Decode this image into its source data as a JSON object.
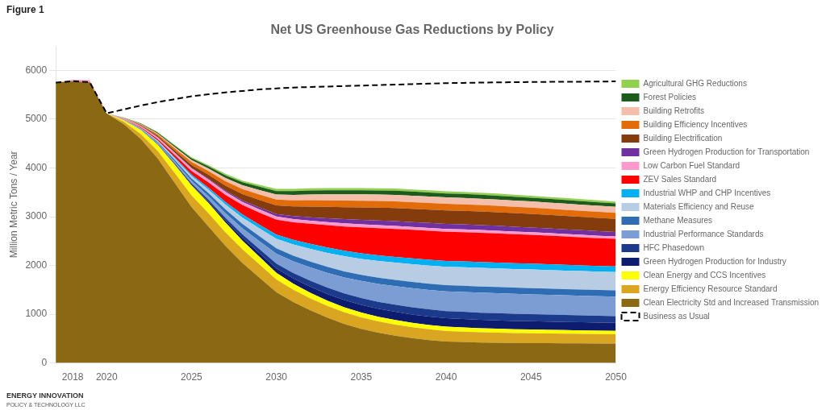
{
  "chart_data": {
    "type": "area",
    "title": "Net US Greenhouse Gas Reductions by Policy",
    "y_label": "Million Metric Tons / Year",
    "annotations": [
      "Figure 1",
      "ENERGY INNOVATION",
      "POLICY & TECHNOLOGY LLC"
    ],
    "x": [
      2017,
      2018,
      2019,
      2020,
      2021,
      2022,
      2023,
      2024,
      2025,
      2026,
      2027,
      2028,
      2029,
      2030,
      2031,
      2032,
      2033,
      2034,
      2035,
      2036,
      2037,
      2038,
      2039,
      2040,
      2041,
      2042,
      2043,
      2044,
      2045,
      2046,
      2047,
      2048,
      2049,
      2050
    ],
    "stacked": true,
    "series": [
      {
        "name": "Clean Electricity Std and Increased Transmission",
        "color": "#8B6914",
        "values": [
          5750,
          5780,
          5760,
          5120,
          4900,
          4600,
          4200,
          3700,
          3200,
          2800,
          2400,
          2050,
          1750,
          1450,
          1250,
          1080,
          930,
          800,
          700,
          620,
          560,
          510,
          470,
          440,
          430,
          420,
          415,
          410,
          408,
          406,
          404,
          402,
          400,
          400
        ]
      },
      {
        "name": "Energy Efficiency Resource Standard",
        "color": "#DAA520",
        "values": [
          0,
          0,
          0,
          0,
          50,
          100,
          150,
          200,
          240,
          270,
          280,
          280,
          270,
          260,
          250,
          245,
          240,
          238,
          235,
          232,
          228,
          224,
          220,
          216,
          212,
          208,
          205,
          202,
          200,
          198,
          196,
          194,
          192,
          190
        ]
      },
      {
        "name": "Clean Energy and CCS Incentives",
        "color": "#FFFF00",
        "values": [
          0,
          0,
          0,
          0,
          30,
          80,
          130,
          170,
          200,
          210,
          200,
          180,
          160,
          140,
          125,
          115,
          108,
          102,
          98,
          95,
          93,
          91,
          90,
          88,
          86,
          84,
          82,
          80,
          78,
          76,
          74,
          72,
          70,
          68
        ]
      },
      {
        "name": "Green Hydrogen Production for Industry",
        "color": "#0D1C6E",
        "values": [
          0,
          0,
          0,
          0,
          0,
          2,
          5,
          10,
          18,
          28,
          40,
          55,
          72,
          90,
          108,
          124,
          138,
          150,
          158,
          164,
          168,
          170,
          172,
          173,
          173,
          172,
          171,
          170,
          169,
          168,
          167,
          166,
          165,
          164
        ]
      },
      {
        "name": "HFC Phasedown",
        "color": "#1C3A8C",
        "values": [
          0,
          0,
          0,
          0,
          2,
          5,
          10,
          18,
          28,
          40,
          55,
          70,
          85,
          100,
          112,
          122,
          130,
          136,
          140,
          143,
          145,
          146,
          147,
          148,
          148,
          148,
          147,
          146,
          145,
          144,
          143,
          142,
          141,
          140
        ]
      },
      {
        "name": "Industrial Performance Standards",
        "color": "#7B9DD4",
        "values": [
          0,
          0,
          0,
          0,
          5,
          12,
          22,
          35,
          50,
          70,
          95,
          125,
          160,
          200,
          238,
          272,
          302,
          328,
          350,
          368,
          382,
          393,
          400,
          405,
          408,
          410,
          410,
          410,
          408,
          406,
          404,
          402,
          400,
          398
        ]
      },
      {
        "name": "Methane Measures",
        "color": "#2E6DB4",
        "values": [
          0,
          0,
          0,
          0,
          5,
          12,
          22,
          35,
          50,
          65,
          80,
          92,
          102,
          110,
          116,
          120,
          123,
          125,
          126,
          127,
          127,
          127,
          127,
          127,
          127,
          127,
          127,
          127,
          127,
          127,
          127,
          127,
          127,
          127
        ]
      },
      {
        "name": "Materials Efficiency and Reuse",
        "color": "#B8CCE4",
        "values": [
          0,
          0,
          0,
          0,
          2,
          8,
          18,
          32,
          50,
          72,
          98,
          128,
          162,
          198,
          232,
          262,
          288,
          310,
          328,
          343,
          355,
          364,
          371,
          376,
          379,
          381,
          382,
          382,
          382,
          381,
          380,
          379,
          378,
          377
        ]
      },
      {
        "name": "Industrial WHP and CHP Incentives",
        "color": "#00B0F0",
        "values": [
          0,
          0,
          0,
          0,
          2,
          5,
          10,
          18,
          28,
          40,
          52,
          64,
          76,
          86,
          95,
          102,
          108,
          112,
          115,
          117,
          118,
          119,
          120,
          120,
          120,
          120,
          120,
          120,
          120,
          120,
          119,
          118,
          117,
          116
        ]
      },
      {
        "name": "ZEV Sales Standard",
        "color": "#FF0000",
        "values": [
          0,
          0,
          0,
          0,
          5,
          15,
          30,
          50,
          75,
          108,
          148,
          195,
          248,
          305,
          360,
          412,
          458,
          498,
          530,
          556,
          574,
          586,
          594,
          598,
          600,
          600,
          598,
          594,
          590,
          585,
          580,
          575,
          570,
          565
        ]
      },
      {
        "name": "Low Carbon Fuel Standard",
        "color": "#FF99CC",
        "values": [
          0,
          30,
          40,
          0,
          15,
          25,
          35,
          44,
          52,
          58,
          62,
          64,
          65,
          65,
          65,
          65,
          65,
          65,
          64,
          63,
          62,
          61,
          60,
          59,
          58,
          57,
          56,
          55,
          54,
          53,
          52,
          51,
          50,
          49
        ]
      },
      {
        "name": "Green Hydrogen Production for Transportation",
        "color": "#7030A0",
        "values": [
          0,
          0,
          0,
          0,
          0,
          0,
          2,
          5,
          10,
          16,
          23,
          32,
          42,
          52,
          62,
          71,
          79,
          85,
          90,
          94,
          97,
          99,
          100,
          101,
          101,
          101,
          100,
          99,
          98,
          97,
          96,
          95,
          94,
          93
        ]
      },
      {
        "name": "Building Electrification",
        "color": "#843C0C",
        "values": [
          0,
          0,
          0,
          0,
          5,
          15,
          28,
          44,
          62,
          82,
          104,
          127,
          151,
          175,
          197,
          216,
          232,
          245,
          255,
          263,
          269,
          273,
          276,
          278,
          279,
          280,
          280,
          279,
          278,
          276,
          274,
          272,
          270,
          268
        ]
      },
      {
        "name": "Building Efficiency Incentives",
        "color": "#E26B0A",
        "values": [
          0,
          0,
          0,
          0,
          5,
          15,
          28,
          44,
          60,
          76,
          90,
          103,
          113,
          121,
          127,
          132,
          135,
          137,
          138,
          138,
          137,
          136,
          135,
          134,
          133,
          132,
          131,
          130,
          129,
          128,
          127,
          126,
          125,
          124
        ]
      },
      {
        "name": "Building Retrofits",
        "color": "#F4BEAA",
        "values": [
          0,
          0,
          0,
          0,
          3,
          8,
          16,
          26,
          38,
          51,
          65,
          78,
          91,
          102,
          111,
          118,
          124,
          128,
          131,
          132,
          133,
          133,
          133,
          132,
          131,
          130,
          129,
          128,
          127,
          126,
          125,
          124,
          123,
          122
        ]
      },
      {
        "name": "Forest Policies",
        "color": "#1E5C1E",
        "values": [
          0,
          0,
          0,
          0,
          5,
          12,
          20,
          29,
          38,
          47,
          55,
          62,
          68,
          73,
          77,
          80,
          82,
          83,
          84,
          84,
          84,
          83,
          83,
          82,
          81,
          80,
          79,
          78,
          77,
          76,
          75,
          74,
          73,
          72
        ]
      },
      {
        "name": "Agricultural GHG Reductions",
        "color": "#92D050",
        "values": [
          0,
          0,
          0,
          0,
          3,
          7,
          12,
          17,
          22,
          27,
          32,
          36,
          39,
          42,
          44,
          45,
          46,
          46,
          46,
          45,
          45,
          44,
          44,
          43,
          43,
          42,
          42,
          41,
          41,
          40,
          40,
          39,
          39,
          38
        ]
      },
      {
        "name": "Business as Usual",
        "type": "line",
        "color": "#000000",
        "line_style": "dashed",
        "values": [
          5750,
          5780,
          5760,
          5120,
          5200,
          5280,
          5350,
          5410,
          5470,
          5510,
          5550,
          5580,
          5610,
          5630,
          5650,
          5660,
          5670,
          5680,
          5690,
          5700,
          5710,
          5720,
          5730,
          5740,
          5745,
          5750,
          5755,
          5760,
          5763,
          5766,
          5768,
          5770,
          5772,
          5775
        ]
      }
    ],
    "xlim": [
      2017,
      2050
    ],
    "ylim": [
      0,
      6500
    ],
    "xticks": [
      2018,
      2020,
      2025,
      2030,
      2035,
      2040,
      2045,
      2050
    ],
    "yticks": [
      0,
      1000,
      2000,
      3000,
      4000,
      5000,
      6000
    ],
    "grid": "y",
    "legend": "right"
  }
}
